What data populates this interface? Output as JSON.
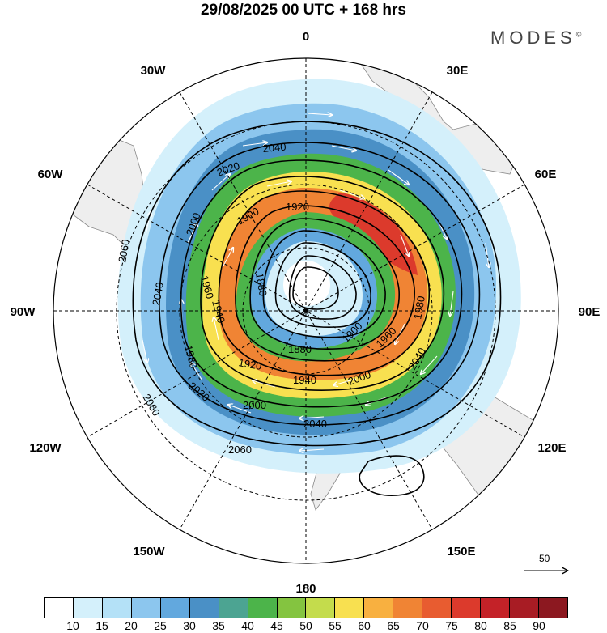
{
  "title": "29/08/2025  00 UTC  + 168 hrs",
  "brand": "MODES",
  "brand_mark": "©",
  "longitude_labels": {
    "n0": "0",
    "n30e": "30E",
    "n60e": "60E",
    "n90e": "90E",
    "n120e": "120E",
    "n150e": "150E",
    "n180": "180",
    "n150w": "150W",
    "n120w": "120W",
    "n90w": "90W",
    "n60w": "60W",
    "n30w": "30W"
  },
  "contour_labels": [
    "2060",
    "2060",
    "2060",
    "2040",
    "2040",
    "2040",
    "2040",
    "2020",
    "2020",
    "2000",
    "2000",
    "2000",
    "1980",
    "1980",
    "1960",
    "1960",
    "1940",
    "1940",
    "1920",
    "1920",
    "1900",
    "1900",
    "1880",
    "1880"
  ],
  "reference_vector": {
    "value": "50"
  },
  "colorbar": {
    "labels": [
      "10",
      "15",
      "20",
      "25",
      "30",
      "35",
      "40",
      "45",
      "50",
      "55",
      "60",
      "65",
      "70",
      "75",
      "80",
      "85",
      "90"
    ],
    "colors": [
      "#ffffff",
      "#d4f0fb",
      "#b4e1f7",
      "#8cc6ee",
      "#62a8de",
      "#4a90c6",
      "#4ca492",
      "#4cb44a",
      "#84c440",
      "#c4dc4c",
      "#f8e050",
      "#f8b040",
      "#f08434",
      "#e85c30",
      "#dc3a2c",
      "#c42228",
      "#a81c24",
      "#8c1820"
    ]
  }
}
